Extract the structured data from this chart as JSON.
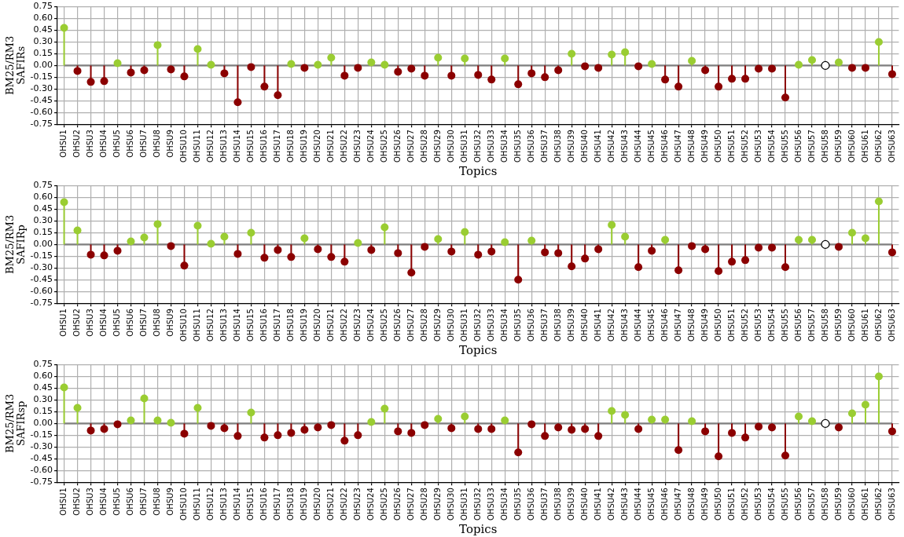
{
  "chart_data": [
    {
      "type": "lollipop",
      "xlabel": "Topics",
      "ylabel": "BM25/RM3\nSAFIRs",
      "grid": true,
      "legend": false,
      "marker": "circle",
      "categories": [
        "OHSU1",
        "OHSU2",
        "OHSU3",
        "OHSU4",
        "OHSU5",
        "OHSU6",
        "OHSU7",
        "OHSU8",
        "OHSU9",
        "OHSU10",
        "OHSU11",
        "OHSU12",
        "OHSU13",
        "OHSU14",
        "OHSU15",
        "OHSU16",
        "OHSU17",
        "OHSU18",
        "OHSU19",
        "OHSU20",
        "OHSU21",
        "OHSU22",
        "OHSU23",
        "OHSU24",
        "OHSU25",
        "OHSU26",
        "OHSU27",
        "OHSU28",
        "OHSU29",
        "OHSU30",
        "OHSU31",
        "OHSU32",
        "OHSU33",
        "OHSU34",
        "OHSU35",
        "OHSU36",
        "OHSU37",
        "OHSU38",
        "OHSU39",
        "OHSU40",
        "OHSU41",
        "OHSU42",
        "OHSU43",
        "OHSU44",
        "OHSU45",
        "OHSU46",
        "OHSU47",
        "OHSU48",
        "OHSU49",
        "OHSU50",
        "OHSU51",
        "OHSU52",
        "OHSU53",
        "OHSU54",
        "OHSU55",
        "OHSU56",
        "OHSU57",
        "OHSU58",
        "OHSU59",
        "OHSU60",
        "OHSU61",
        "OHSU62",
        "OHSU63"
      ],
      "values": [
        0.48,
        -0.07,
        -0.21,
        -0.2,
        0.03,
        -0.09,
        -0.06,
        0.26,
        -0.05,
        -0.14,
        0.21,
        0.01,
        -0.1,
        -0.47,
        -0.02,
        -0.27,
        -0.38,
        0.02,
        -0.03,
        0.01,
        0.1,
        -0.13,
        -0.03,
        0.04,
        0.01,
        -0.08,
        -0.04,
        -0.13,
        0.1,
        -0.13,
        0.09,
        -0.12,
        -0.18,
        0.09,
        -0.24,
        -0.1,
        -0.15,
        -0.06,
        0.15,
        -0.01,
        -0.03,
        0.14,
        0.17,
        -0.01,
        0.02,
        -0.18,
        -0.27,
        0.06,
        -0.06,
        -0.27,
        -0.17,
        -0.17,
        -0.04,
        -0.04,
        -0.41,
        0.01,
        0.07,
        0,
        0.04,
        -0.03,
        -0.03,
        0.3,
        -0.11
      ],
      "ylim": [
        -0.75,
        0.75
      ],
      "yticks": [
        -0.75,
        {
          "value": -0.6,
          "label": "-0.60"
        },
        -0.45,
        {
          "value": -0.3,
          "label": "-0.30"
        },
        -0.15,
        {
          "value": 0,
          "label": "0.00"
        },
        0.15,
        {
          "value": 0.3,
          "label": "0.30"
        },
        0.45,
        {
          "value": 0.6,
          "label": "0.60"
        },
        0.75
      ]
    },
    {
      "type": "lollipop",
      "xlabel": "Topics",
      "ylabel": "BM25/RM3\nSAFIRp",
      "grid": true,
      "legend": false,
      "marker": "circle",
      "categories": [
        "OHSU1",
        "OHSU2",
        "OHSU3",
        "OHSU4",
        "OHSU5",
        "OHSU6",
        "OHSU7",
        "OHSU8",
        "OHSU9",
        "OHSU10",
        "OHSU11",
        "OHSU12",
        "OHSU13",
        "OHSU14",
        "OHSU15",
        "OHSU16",
        "OHSU17",
        "OHSU18",
        "OHSU19",
        "OHSU20",
        "OHSU21",
        "OHSU22",
        "OHSU23",
        "OHSU24",
        "OHSU25",
        "OHSU26",
        "OHSU27",
        "OHSU28",
        "OHSU29",
        "OHSU30",
        "OHSU31",
        "OHSU32",
        "OHSU33",
        "OHSU34",
        "OHSU35",
        "OHSU36",
        "OHSU37",
        "OHSU38",
        "OHSU39",
        "OHSU40",
        "OHSU41",
        "OHSU42",
        "OHSU43",
        "OHSU44",
        "OHSU45",
        "OHSU46",
        "OHSU47",
        "OHSU48",
        "OHSU49",
        "OHSU50",
        "OHSU51",
        "OHSU52",
        "OHSU53",
        "OHSU54",
        "OHSU55",
        "OHSU56",
        "OHSU57",
        "OHSU58",
        "OHSU59",
        "OHSU60",
        "OHSU61",
        "OHSU62",
        "OHSU63"
      ],
      "values": [
        0.54,
        0.18,
        -0.13,
        -0.14,
        -0.08,
        0.04,
        0.09,
        0.26,
        -0.02,
        -0.27,
        0.24,
        0.01,
        0.1,
        -0.12,
        0.15,
        -0.17,
        -0.07,
        -0.16,
        0.08,
        -0.06,
        -0.16,
        -0.22,
        0.02,
        -0.07,
        0.22,
        -0.11,
        -0.36,
        -0.03,
        0.07,
        -0.09,
        0.16,
        -0.13,
        -0.09,
        0.03,
        -0.45,
        0.05,
        -0.1,
        -0.11,
        -0.28,
        -0.18,
        -0.06,
        0.25,
        0.1,
        -0.29,
        -0.08,
        0.06,
        -0.33,
        -0.02,
        -0.06,
        -0.34,
        -0.22,
        -0.2,
        -0.04,
        -0.04,
        -0.29,
        0.06,
        0.06,
        0,
        -0.03,
        0.15,
        0.08,
        0.55,
        -0.1
      ],
      "ylim": [
        -0.75,
        0.75
      ],
      "yticks": [
        -0.75,
        {
          "value": -0.6,
          "label": "-0.60"
        },
        -0.45,
        {
          "value": -0.3,
          "label": "-0.30"
        },
        -0.15,
        {
          "value": 0,
          "label": "0.00"
        },
        0.15,
        {
          "value": 0.3,
          "label": "0.30"
        },
        0.45,
        {
          "value": 0.6,
          "label": "0.60"
        },
        0.75
      ]
    },
    {
      "type": "lollipop",
      "xlabel": "Topics",
      "ylabel": "BM25/RM3\nSAFIRsp",
      "grid": true,
      "legend": false,
      "marker": "circle",
      "categories": [
        "OHSU1",
        "OHSU2",
        "OHSU3",
        "OHSU4",
        "OHSU5",
        "OHSU6",
        "OHSU7",
        "OHSU8",
        "OHSU9",
        "OHSU10",
        "OHSU11",
        "OHSU12",
        "OHSU13",
        "OHSU14",
        "OHSU15",
        "OHSU16",
        "OHSU17",
        "OHSU18",
        "OHSU19",
        "OHSU20",
        "OHSU21",
        "OHSU22",
        "OHSU23",
        "OHSU24",
        "OHSU25",
        "OHSU26",
        "OHSU27",
        "OHSU28",
        "OHSU29",
        "OHSU30",
        "OHSU31",
        "OHSU32",
        "OHSU33",
        "OHSU34",
        "OHSU35",
        "OHSU36",
        "OHSU37",
        "OHSU38",
        "OHSU39",
        "OHSU40",
        "OHSU41",
        "OHSU42",
        "OHSU43",
        "OHSU44",
        "OHSU45",
        "OHSU46",
        "OHSU47",
        "OHSU48",
        "OHSU49",
        "OHSU50",
        "OHSU51",
        "OHSU52",
        "OHSU53",
        "OHSU54",
        "OHSU55",
        "OHSU56",
        "OHSU57",
        "OHSU58",
        "OHSU59",
        "OHSU60",
        "OHSU61",
        "OHSU62",
        "OHSU63"
      ],
      "values": [
        0.46,
        0.2,
        -0.09,
        -0.07,
        -0.01,
        0.04,
        0.32,
        0.04,
        0.01,
        -0.13,
        0.2,
        -0.03,
        -0.06,
        -0.16,
        0.14,
        -0.18,
        -0.15,
        -0.12,
        -0.08,
        -0.05,
        -0.02,
        -0.22,
        -0.15,
        0.02,
        0.19,
        -0.1,
        -0.12,
        -0.02,
        0.06,
        -0.06,
        0.09,
        -0.07,
        -0.07,
        0.04,
        -0.37,
        -0.01,
        -0.16,
        -0.05,
        -0.08,
        -0.07,
        -0.16,
        0.16,
        0.11,
        -0.07,
        0.05,
        0.05,
        -0.34,
        0.03,
        -0.1,
        -0.42,
        -0.12,
        -0.18,
        -0.04,
        -0.05,
        -0.41,
        0.09,
        0.03,
        0,
        -0.05,
        0.13,
        0.24,
        0.6,
        -0.1
      ],
      "ylim": [
        -0.75,
        0.75
      ],
      "yticks": [
        -0.75,
        {
          "value": -0.6,
          "label": "-0.60"
        },
        -0.45,
        {
          "value": -0.3,
          "label": "-0.30"
        },
        -0.15,
        {
          "value": 0,
          "label": "0.00"
        },
        0.15,
        {
          "value": 0.3,
          "label": "0.30"
        },
        0.45,
        {
          "value": 0.6,
          "label": "0.60"
        },
        0.75
      ]
    }
  ]
}
